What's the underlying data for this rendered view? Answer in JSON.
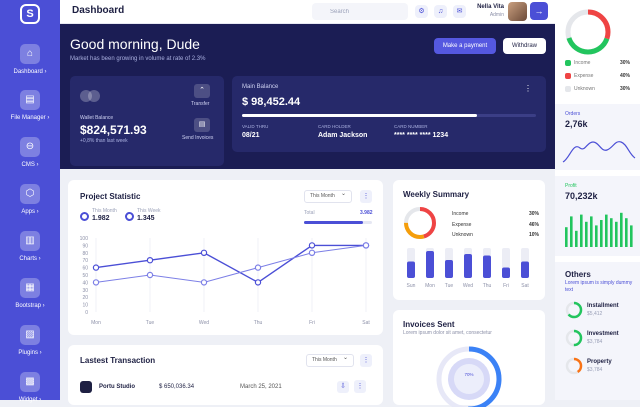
{
  "sidebar": {
    "logo": "S",
    "items": [
      {
        "label": "Dashboard",
        "icon": "home-icon",
        "glyph": "⌂"
      },
      {
        "label": "File Manager",
        "icon": "file-icon",
        "glyph": "▤"
      },
      {
        "label": "CMS",
        "icon": "cms-icon",
        "glyph": "⊖"
      },
      {
        "label": "Apps",
        "icon": "apps-icon",
        "glyph": "⬡"
      },
      {
        "label": "Charts",
        "icon": "charts-icon",
        "glyph": "▥"
      },
      {
        "label": "Bootstrap",
        "icon": "bootstrap-icon",
        "glyph": "▦"
      },
      {
        "label": "Plugins",
        "icon": "plugins-icon",
        "glyph": "▨"
      },
      {
        "label": "Widget",
        "icon": "widget-icon",
        "glyph": "▩"
      }
    ]
  },
  "header": {
    "title": "Dashboard",
    "search_placeholder": "Search",
    "user_name": "Nella Vita",
    "user_role": "Admin"
  },
  "hero": {
    "greeting": "Good morning, Dude",
    "subtitle": "Market has been growing in volume at rate of 2.3%",
    "pay_label": "Make a payment",
    "withdraw_label": "Withdraw",
    "wallet": {
      "label": "Wallet Balance",
      "amount": "$824,571.93",
      "change": "+0,8% than last week",
      "transfer": "Transfer",
      "send": "Send Invoices"
    },
    "balance": {
      "title": "Main Balance",
      "amount": "$ 98,452.44",
      "progress": 0.8,
      "valid_label": "VALID THRU",
      "valid_value": "08/21",
      "holder_label": "CARD HOLDER",
      "holder_value": "Adam Jackson",
      "number_label": "CARD NUMBER",
      "number_value": "**** **** **** 1234"
    }
  },
  "project": {
    "title": "Project Statistic",
    "month_label": "This Month",
    "legend": [
      {
        "label": "This Month",
        "value": "1.982"
      },
      {
        "label": "This Week",
        "value": "1.345"
      }
    ],
    "total_label": "Total",
    "total_value": "3.982",
    "total_progress": 0.87
  },
  "chart_data": {
    "type": "line",
    "categories": [
      "Mon",
      "Tue",
      "Wed",
      "Thu",
      "Fri",
      "Sat"
    ],
    "series": [
      {
        "name": "This Month",
        "values": [
          60,
          70,
          80,
          40,
          90,
          90
        ]
      },
      {
        "name": "This Week",
        "values": [
          40,
          50,
          40,
          60,
          80,
          90
        ]
      }
    ],
    "ylim": [
      0,
      100
    ],
    "yticks": [
      "100",
      "90",
      "80",
      "70",
      "60",
      "50",
      "40",
      "30",
      "20",
      "10",
      "0"
    ],
    "grid": "vertical"
  },
  "weekly": {
    "title": "Weekly Summary",
    "items": [
      {
        "label": "Income",
        "pct": "30%",
        "color": "#f59e0b"
      },
      {
        "label": "Expense",
        "pct": "46%",
        "color": "#ef4444"
      },
      {
        "label": "Unknown",
        "pct": "10%",
        "color": "#e5e7eb"
      }
    ],
    "bars": [
      {
        "day": "Sun",
        "value": 0.55
      },
      {
        "day": "Mon",
        "value": 0.9
      },
      {
        "day": "Tue",
        "value": 0.6
      },
      {
        "day": "Wed",
        "value": 0.8
      },
      {
        "day": "Thu",
        "value": 0.75
      },
      {
        "day": "Fri",
        "value": 0.35
      },
      {
        "day": "Sat",
        "value": 0.55
      }
    ]
  },
  "invoices": {
    "title": "Invoices Sent",
    "subtitle": "Lorem ipsum dolor sit amet, consectetur",
    "center": "70%"
  },
  "transactions": {
    "title": "Lastest Transaction",
    "month_label": "This Month",
    "rows": [
      {
        "name": "Portu Studio",
        "amount": "$ 650,036.34",
        "date": "March 25, 2021"
      }
    ]
  },
  "right": {
    "donut": [
      {
        "label": "Income",
        "pct": "30%",
        "color": "#22c55e"
      },
      {
        "label": "Expense",
        "pct": "40%",
        "color": "#ef4444"
      },
      {
        "label": "Unknown",
        "pct": "30%",
        "color": "#e5e7eb"
      }
    ],
    "orders_label": "Orders",
    "orders_value": "2,76k",
    "profit_label": "Profit",
    "profit_value": "70,232k",
    "profit_bars": [
      0.55,
      0.85,
      0.45,
      0.9,
      0.7,
      0.85,
      0.6,
      0.75,
      0.9,
      0.8,
      0.7,
      0.95,
      0.8,
      0.6
    ],
    "others_title": "Others",
    "others_sub": "Lorem ipsum is simply dummy text",
    "others": [
      {
        "name": "Installment",
        "value": "$5,412",
        "color": "#22c55e"
      },
      {
        "name": "Investment",
        "value": "$3,784",
        "color": "#22c55e"
      },
      {
        "name": "Property",
        "value": "$3,784",
        "color": "#f97316"
      }
    ]
  }
}
